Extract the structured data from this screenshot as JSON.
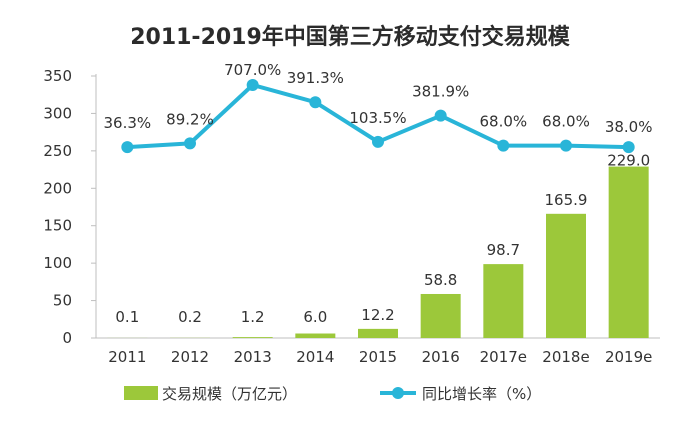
{
  "chart_data": {
    "type": "bar+line",
    "title": "2011-2019年中国第三方移动支付交易规模",
    "categories": [
      "2011",
      "2012",
      "2013",
      "2014",
      "2015",
      "2016",
      "2017e",
      "2018e",
      "2019e"
    ],
    "series": [
      {
        "name": "交易规模（万亿元）",
        "type": "bar",
        "color": "#9cc83a",
        "values": [
          0.1,
          0.2,
          1.2,
          6.0,
          12.2,
          58.8,
          98.7,
          165.9,
          229.0
        ],
        "value_labels": [
          "0.1",
          "0.2",
          "1.2",
          "6.0",
          "12.2",
          "58.8",
          "98.7",
          "165.9",
          "229.0"
        ]
      },
      {
        "name": "同比增长率（%）",
        "type": "line",
        "color": "#29b5d8",
        "values": [
          36.3,
          89.2,
          707.0,
          391.3,
          103.5,
          381.9,
          68.0,
          68.0,
          38.0
        ],
        "value_labels": [
          "36.3%",
          "89.2%",
          "707.0%",
          "391.3%",
          "103.5%",
          "381.9%",
          "68.0%",
          "68.0%",
          "38.0%"
        ],
        "plotted_positions_on_left_axis": [
          255,
          260,
          338,
          315,
          262,
          297,
          257,
          257,
          255
        ]
      }
    ],
    "ylim": [
      0,
      350
    ],
    "yticks": [
      0,
      50,
      100,
      150,
      200,
      250,
      300,
      350
    ],
    "ytick_labels": [
      "0",
      "50",
      "100",
      "150",
      "200",
      "250",
      "300",
      "350"
    ],
    "legend_position": "bottom"
  }
}
